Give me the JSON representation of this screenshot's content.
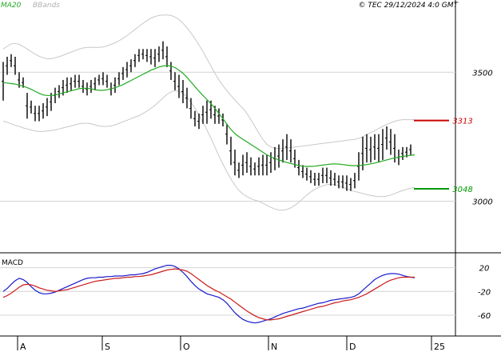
{
  "header": {
    "ma_label": "MA20",
    "bbands_label": "BBands",
    "copyright": "© TEC 29/12/2024 4:0 GMT"
  },
  "colors": {
    "ma": "#22aa22",
    "bbands": "#c8c8c8",
    "price": "#000000",
    "resistance": "#cc0000",
    "support": "#009900",
    "macd": "#1a1acc",
    "signal": "#cc1a1a",
    "grid": "#d4d4d4"
  },
  "chart_data": [
    {
      "type": "line",
      "panel": "price",
      "ylim": [
        2800,
        3780
      ],
      "y_ticks": [
        {
          "value": 3500,
          "label": "3500"
        },
        {
          "value": 3000,
          "label": "3000"
        }
      ],
      "grid": true,
      "x_ticks": [
        "A",
        "S",
        "O",
        "N",
        "D",
        "25"
      ],
      "levels": [
        {
          "name": "resistance",
          "value": 3313,
          "label": "3313",
          "color": "#cc0000"
        },
        {
          "name": "support",
          "value": 3048,
          "label": "3048",
          "color": "#009900"
        }
      ],
      "candles": [
        [
          3390,
          3540
        ],
        [
          3490,
          3560
        ],
        [
          3520,
          3570
        ],
        [
          3490,
          3560
        ],
        [
          3440,
          3500
        ],
        [
          3440,
          3480
        ],
        [
          3320,
          3420
        ],
        [
          3340,
          3390
        ],
        [
          3310,
          3370
        ],
        [
          3310,
          3370
        ],
        [
          3320,
          3380
        ],
        [
          3330,
          3400
        ],
        [
          3350,
          3420
        ],
        [
          3380,
          3440
        ],
        [
          3400,
          3450
        ],
        [
          3410,
          3470
        ],
        [
          3420,
          3480
        ],
        [
          3430,
          3480
        ],
        [
          3440,
          3490
        ],
        [
          3440,
          3490
        ],
        [
          3420,
          3470
        ],
        [
          3410,
          3460
        ],
        [
          3420,
          3470
        ],
        [
          3430,
          3480
        ],
        [
          3450,
          3490
        ],
        [
          3450,
          3500
        ],
        [
          3440,
          3490
        ],
        [
          3410,
          3460
        ],
        [
          3420,
          3480
        ],
        [
          3450,
          3500
        ],
        [
          3470,
          3520
        ],
        [
          3480,
          3540
        ],
        [
          3500,
          3550
        ],
        [
          3520,
          3570
        ],
        [
          3540,
          3590
        ],
        [
          3550,
          3590
        ],
        [
          3540,
          3590
        ],
        [
          3530,
          3590
        ],
        [
          3520,
          3590
        ],
        [
          3540,
          3600
        ],
        [
          3550,
          3620
        ],
        [
          3520,
          3600
        ],
        [
          3470,
          3540
        ],
        [
          3430,
          3500
        ],
        [
          3400,
          3490
        ],
        [
          3380,
          3470
        ],
        [
          3360,
          3440
        ],
        [
          3320,
          3400
        ],
        [
          3290,
          3350
        ],
        [
          3280,
          3340
        ],
        [
          3300,
          3370
        ],
        [
          3300,
          3390
        ],
        [
          3320,
          3390
        ],
        [
          3300,
          3370
        ],
        [
          3300,
          3360
        ],
        [
          3290,
          3340
        ],
        [
          3220,
          3300
        ],
        [
          3140,
          3250
        ],
        [
          3100,
          3200
        ],
        [
          3090,
          3150
        ],
        [
          3100,
          3180
        ],
        [
          3110,
          3190
        ],
        [
          3100,
          3170
        ],
        [
          3100,
          3150
        ],
        [
          3100,
          3170
        ],
        [
          3100,
          3180
        ],
        [
          3100,
          3180
        ],
        [
          3110,
          3190
        ],
        [
          3120,
          3210
        ],
        [
          3130,
          3220
        ],
        [
          3150,
          3240
        ],
        [
          3160,
          3260
        ],
        [
          3150,
          3240
        ],
        [
          3130,
          3200
        ],
        [
          3100,
          3160
        ],
        [
          3090,
          3140
        ],
        [
          3080,
          3130
        ],
        [
          3070,
          3120
        ],
        [
          3060,
          3110
        ],
        [
          3060,
          3110
        ],
        [
          3070,
          3130
        ],
        [
          3070,
          3130
        ],
        [
          3060,
          3120
        ],
        [
          3060,
          3110
        ],
        [
          3050,
          3100
        ],
        [
          3050,
          3100
        ],
        [
          3040,
          3100
        ],
        [
          3040,
          3090
        ],
        [
          3050,
          3110
        ],
        [
          3080,
          3190
        ],
        [
          3120,
          3250
        ],
        [
          3150,
          3260
        ],
        [
          3150,
          3250
        ],
        [
          3160,
          3260
        ],
        [
          3150,
          3260
        ],
        [
          3160,
          3280
        ],
        [
          3200,
          3290
        ],
        [
          3180,
          3280
        ],
        [
          3150,
          3260
        ],
        [
          3140,
          3200
        ],
        [
          3160,
          3210
        ],
        [
          3170,
          3210
        ],
        [
          3180,
          3220
        ]
      ],
      "series": [
        {
          "values": [
            3460,
            3458,
            3456,
            3454,
            3450,
            3446,
            3440,
            3434,
            3426,
            3418,
            3412,
            3410,
            3410,
            3412,
            3416,
            3420,
            3424,
            3428,
            3432,
            3436,
            3438,
            3438,
            3436,
            3432,
            3430,
            3430,
            3432,
            3436,
            3440,
            3446,
            3452,
            3460,
            3468,
            3476,
            3484,
            3492,
            3500,
            3508,
            3514,
            3520,
            3524,
            3526,
            3524,
            3518,
            3508,
            3496,
            3480,
            3462,
            3444,
            3426,
            3410,
            3394,
            3378,
            3360,
            3340,
            3320,
            3298,
            3278,
            3262,
            3250,
            3240,
            3230,
            3220,
            3210,
            3200,
            3190,
            3180,
            3172,
            3166,
            3160,
            3155,
            3150,
            3146,
            3142,
            3138,
            3136,
            3135,
            3135,
            3136,
            3138,
            3140,
            3142,
            3144,
            3145,
            3144,
            3142,
            3140,
            3138,
            3138,
            3138,
            3140,
            3142,
            3145,
            3148,
            3152,
            3156,
            3160,
            3164,
            3168,
            3171,
            3174,
            3176,
            3178,
            3180
          ]
        },
        {
          "values": [
            3590,
            3600,
            3610,
            3612,
            3608,
            3600,
            3590,
            3580,
            3570,
            3562,
            3556,
            3552,
            3552,
            3556,
            3560,
            3566,
            3572,
            3578,
            3584,
            3590,
            3594,
            3596,
            3596,
            3596,
            3596,
            3598,
            3602,
            3608,
            3614,
            3622,
            3632,
            3642,
            3654,
            3666,
            3678,
            3690,
            3700,
            3710,
            3716,
            3720,
            3722,
            3722,
            3720,
            3714,
            3704,
            3690,
            3672,
            3652,
            3630,
            3606,
            3580,
            3552,
            3524,
            3496,
            3470,
            3448,
            3428,
            3410,
            3392,
            3376,
            3360,
            3340,
            3316,
            3290,
            3264,
            3240,
            3220,
            3210,
            3206,
            3204,
            3204,
            3206,
            3208,
            3210,
            3212,
            3214,
            3216,
            3218,
            3220,
            3222,
            3224,
            3226,
            3228,
            3230,
            3232,
            3234,
            3236,
            3238,
            3240,
            3244,
            3250,
            3258,
            3266,
            3274,
            3282,
            3290,
            3298,
            3304,
            3310,
            3314,
            3316,
            3316,
            3316,
            3316
          ]
        },
        {
          "values": [
            3310,
            3306,
            3300,
            3294,
            3290,
            3284,
            3280,
            3276,
            3272,
            3270,
            3270,
            3272,
            3274,
            3276,
            3280,
            3284,
            3288,
            3292,
            3296,
            3300,
            3302,
            3302,
            3300,
            3296,
            3292,
            3290,
            3290,
            3292,
            3296,
            3302,
            3308,
            3314,
            3320,
            3326,
            3332,
            3340,
            3350,
            3360,
            3372,
            3386,
            3400,
            3414,
            3424,
            3428,
            3426,
            3418,
            3404,
            3384,
            3360,
            3334,
            3306,
            3276,
            3244,
            3210,
            3176,
            3144,
            3114,
            3086,
            3062,
            3042,
            3028,
            3018,
            3010,
            3004,
            3000,
            2992,
            2984,
            2976,
            2970,
            2966,
            2965,
            2968,
            2974,
            2984,
            2996,
            3010,
            3024,
            3036,
            3046,
            3054,
            3060,
            3064,
            3066,
            3064,
            3060,
            3054,
            3048,
            3042,
            3038,
            3034,
            3030,
            3026,
            3022,
            3020,
            3018,
            3018,
            3020,
            3024,
            3030,
            3036,
            3042,
            3046,
            3050,
            3054
          ]
        }
      ]
    },
    {
      "type": "line",
      "panel": "macd",
      "title": "MACD",
      "ylim": [
        -95,
        45
      ],
      "y_ticks": [
        {
          "value": 20,
          "label": "20"
        },
        {
          "value": -20,
          "label": "-20"
        },
        {
          "value": -60,
          "label": "-60"
        }
      ],
      "series": [
        {
          "values": [
            -20,
            -15,
            -8,
            -2,
            2,
            0,
            -5,
            -12,
            -18,
            -22,
            -24,
            -24,
            -23,
            -21,
            -18,
            -15,
            -12,
            -9,
            -6,
            -3,
            0,
            2,
            3,
            3,
            4,
            4,
            5,
            5,
            6,
            6,
            6,
            7,
            8,
            8,
            9,
            10,
            12,
            15,
            18,
            20,
            22,
            24,
            24,
            22,
            18,
            12,
            5,
            -3,
            -10,
            -16,
            -20,
            -24,
            -26,
            -28,
            -30,
            -34,
            -40,
            -48,
            -56,
            -62,
            -67,
            -70,
            -72,
            -73,
            -72,
            -70,
            -68,
            -66,
            -63,
            -60,
            -57,
            -55,
            -53,
            -51,
            -49,
            -48,
            -46,
            -44,
            -42,
            -40,
            -39,
            -37,
            -35,
            -34,
            -33,
            -32,
            -31,
            -30,
            -28,
            -24,
            -18,
            -12,
            -6,
            0,
            4,
            7,
            9,
            10,
            10,
            9,
            7,
            5,
            4,
            3
          ]
        },
        {
          "values": [
            -30,
            -27,
            -23,
            -18,
            -13,
            -9,
            -8,
            -9,
            -11,
            -14,
            -16,
            -18,
            -19,
            -20,
            -19,
            -18,
            -17,
            -15,
            -13,
            -11,
            -9,
            -7,
            -5,
            -3,
            -2,
            -1,
            0,
            1,
            2,
            2,
            3,
            4,
            4,
            5,
            5,
            6,
            7,
            8,
            10,
            12,
            14,
            16,
            17,
            18,
            17,
            16,
            14,
            10,
            5,
            0,
            -5,
            -10,
            -14,
            -18,
            -21,
            -25,
            -29,
            -33,
            -38,
            -43,
            -48,
            -53,
            -57,
            -61,
            -64,
            -66,
            -68,
            -68,
            -67,
            -66,
            -64,
            -62,
            -60,
            -58,
            -56,
            -54,
            -52,
            -50,
            -48,
            -46,
            -45,
            -43,
            -41,
            -39,
            -38,
            -36,
            -35,
            -34,
            -32,
            -30,
            -27,
            -24,
            -20,
            -16,
            -12,
            -8,
            -4,
            -1,
            1,
            3,
            4,
            4,
            4,
            4
          ]
        }
      ]
    }
  ]
}
